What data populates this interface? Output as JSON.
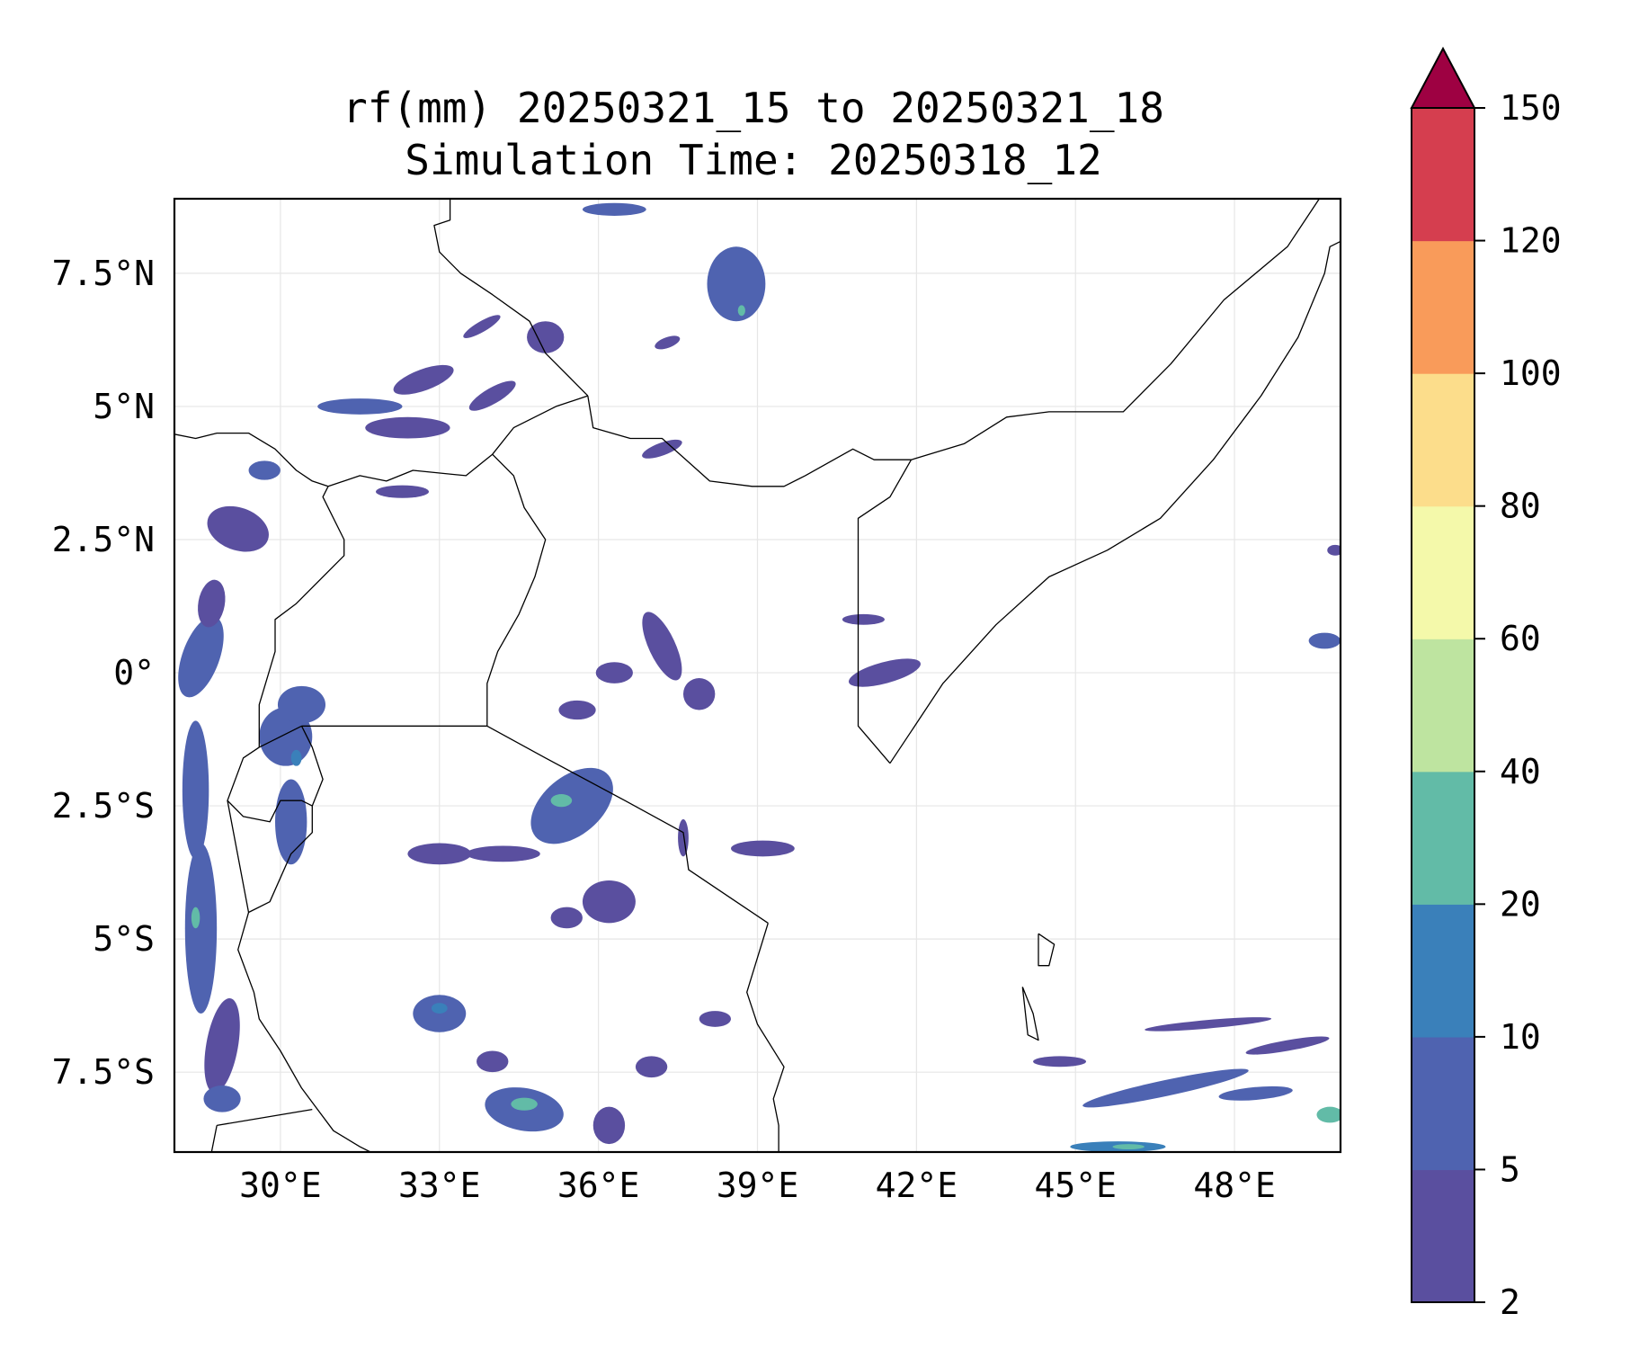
{
  "map": {
    "title_line1": "rf(mm) 20250321_15 to 20250321_18",
    "title_line2": "Simulation Time: 20250318_12",
    "extent": {
      "lon": [
        28.0,
        50.0
      ],
      "lat": [
        -9.0,
        8.9
      ]
    },
    "lon_ticks": [
      {
        "value": 30,
        "label": "30°E"
      },
      {
        "value": 33,
        "label": "33°E"
      },
      {
        "value": 36,
        "label": "36°E"
      },
      {
        "value": 39,
        "label": "39°E"
      },
      {
        "value": 42,
        "label": "42°E"
      },
      {
        "value": 45,
        "label": "45°E"
      },
      {
        "value": 48,
        "label": "48°E"
      }
    ],
    "lat_ticks": [
      {
        "value": 7.5,
        "label": "7.5°N"
      },
      {
        "value": 5,
        "label": "5°N"
      },
      {
        "value": 2.5,
        "label": "2.5°N"
      },
      {
        "value": 0,
        "label": "0°"
      },
      {
        "value": -2.5,
        "label": "2.5°S"
      },
      {
        "value": -5,
        "label": "5°S"
      },
      {
        "value": -7.5,
        "label": "7.5°S"
      }
    ],
    "gridlines": true
  },
  "colorbar": {
    "levels": [
      {
        "value": 2,
        "label": "2"
      },
      {
        "value": 5,
        "label": "5"
      },
      {
        "value": 10,
        "label": "10"
      },
      {
        "value": 20,
        "label": "20"
      },
      {
        "value": 40,
        "label": "40"
      },
      {
        "value": 60,
        "label": "60"
      },
      {
        "value": 80,
        "label": "80"
      },
      {
        "value": 100,
        "label": "100"
      },
      {
        "value": 120,
        "label": "120"
      },
      {
        "value": 150,
        "label": "150"
      }
    ],
    "colors": [
      "#5a4f9f",
      "#4f63b0",
      "#3a80ba",
      "#62bba7",
      "#bee4a0",
      "#f4f9aa",
      "#fcdd8b",
      "#f99b5a",
      "#d53e4f"
    ],
    "extend_max_color": "#9e0142",
    "placement": "right"
  },
  "borders": [
    [
      [
        27.9,
        4.5
      ],
      [
        28.4,
        4.4
      ],
      [
        28.8,
        4.5
      ],
      [
        29.4,
        4.5
      ],
      [
        29.9,
        4.2
      ],
      [
        30.3,
        3.8
      ],
      [
        30.6,
        3.6
      ],
      [
        30.9,
        3.5
      ],
      [
        31.5,
        3.7
      ],
      [
        32.0,
        3.6
      ],
      [
        32.5,
        3.8
      ],
      [
        33.5,
        3.7
      ],
      [
        34.0,
        4.1
      ],
      [
        34.4,
        4.6
      ],
      [
        35.2,
        5.0
      ],
      [
        35.8,
        5.2
      ]
    ],
    [
      [
        35.8,
        5.2
      ],
      [
        35.9,
        4.6
      ],
      [
        36.6,
        4.4
      ],
      [
        37.2,
        4.4
      ],
      [
        38.1,
        3.6
      ],
      [
        38.9,
        3.5
      ],
      [
        39.5,
        3.5
      ],
      [
        39.9,
        3.7
      ],
      [
        40.8,
        4.2
      ],
      [
        41.2,
        4.0
      ],
      [
        41.9,
        4.0
      ]
    ],
    [
      [
        41.9,
        4.0
      ],
      [
        41.5,
        3.3
      ],
      [
        40.9,
        2.9
      ],
      [
        40.9,
        1.5
      ],
      [
        40.9,
        0.0
      ],
      [
        40.9,
        -1.0
      ],
      [
        41.5,
        -1.7
      ]
    ],
    [
      [
        41.9,
        4.0
      ],
      [
        42.9,
        4.3
      ],
      [
        43.7,
        4.8
      ],
      [
        44.5,
        4.9
      ],
      [
        45.9,
        4.9
      ],
      [
        46.8,
        5.8
      ],
      [
        47.8,
        7.0
      ],
      [
        49.0,
        8.0
      ],
      [
        49.6,
        8.9
      ]
    ],
    [
      [
        41.5,
        -1.7
      ],
      [
        41.9,
        -1.1
      ],
      [
        42.5,
        -0.2
      ],
      [
        43.5,
        0.9
      ],
      [
        44.5,
        1.8
      ],
      [
        45.6,
        2.3
      ],
      [
        46.6,
        2.9
      ],
      [
        47.6,
        4.0
      ],
      [
        48.5,
        5.2
      ],
      [
        49.2,
        6.3
      ],
      [
        49.7,
        7.5
      ],
      [
        49.8,
        8.0
      ],
      [
        50.0,
        8.1
      ]
    ],
    [
      [
        33.9,
        -1.0
      ],
      [
        35.0,
        -1.6
      ],
      [
        36.5,
        -2.4
      ],
      [
        37.6,
        -3.0
      ],
      [
        37.7,
        -3.7
      ],
      [
        38.6,
        -4.3
      ],
      [
        39.2,
        -4.7
      ]
    ],
    [
      [
        39.2,
        -4.7
      ],
      [
        38.8,
        -6.0
      ],
      [
        39.0,
        -6.6
      ],
      [
        39.5,
        -7.4
      ],
      [
        39.3,
        -8.0
      ],
      [
        39.4,
        -8.5
      ],
      [
        39.4,
        -9.0
      ]
    ],
    [
      [
        30.4,
        -1.0
      ],
      [
        31.3,
        -1.0
      ],
      [
        32.5,
        -1.0
      ],
      [
        33.9,
        -1.0
      ]
    ],
    [
      [
        33.9,
        -1.0
      ],
      [
        33.9,
        -0.2
      ],
      [
        34.1,
        0.4
      ],
      [
        34.5,
        1.1
      ],
      [
        34.8,
        1.8
      ],
      [
        35.0,
        2.5
      ],
      [
        34.6,
        3.1
      ],
      [
        34.4,
        3.7
      ],
      [
        34.0,
        4.1
      ]
    ],
    [
      [
        30.4,
        -1.0
      ],
      [
        30.6,
        -1.4
      ],
      [
        30.8,
        -2.0
      ],
      [
        30.6,
        -2.5
      ],
      [
        30.6,
        -3.0
      ],
      [
        30.2,
        -3.4
      ],
      [
        29.8,
        -4.3
      ],
      [
        29.4,
        -4.5
      ]
    ],
    [
      [
        29.6,
        -1.4
      ],
      [
        30.4,
        -1.0
      ]
    ],
    [
      [
        29.0,
        -2.4
      ],
      [
        29.3,
        -2.7
      ],
      [
        29.8,
        -2.8
      ],
      [
        30.0,
        -2.4
      ],
      [
        30.4,
        -2.4
      ],
      [
        30.6,
        -2.5
      ]
    ],
    [
      [
        29.6,
        -1.4
      ],
      [
        29.3,
        -1.6
      ],
      [
        29.0,
        -2.4
      ],
      [
        29.4,
        -4.5
      ]
    ],
    [
      [
        29.6,
        -1.4
      ],
      [
        29.6,
        -0.6
      ],
      [
        29.9,
        0.4
      ],
      [
        29.9,
        1.0
      ],
      [
        30.3,
        1.3
      ],
      [
        31.2,
        2.2
      ],
      [
        31.2,
        2.5
      ],
      [
        30.8,
        3.3
      ],
      [
        30.9,
        3.5
      ]
    ],
    [
      [
        29.4,
        -4.5
      ],
      [
        29.2,
        -5.2
      ],
      [
        29.5,
        -6.0
      ],
      [
        29.6,
        -6.5
      ],
      [
        30.0,
        -7.1
      ],
      [
        30.4,
        -7.8
      ],
      [
        30.7,
        -8.2
      ],
      [
        31.0,
        -8.6
      ],
      [
        31.5,
        -8.9
      ],
      [
        31.7,
        -9.0
      ]
    ],
    [
      [
        28.8,
        -8.5
      ],
      [
        30.6,
        -8.2
      ]
    ],
    [
      [
        28.7,
        -9.0
      ],
      [
        28.8,
        -8.5
      ]
    ],
    [
      [
        35.8,
        5.2
      ],
      [
        35.5,
        5.5
      ],
      [
        35.0,
        6.0
      ],
      [
        34.7,
        6.6
      ],
      [
        34.0,
        7.1
      ],
      [
        33.4,
        7.5
      ],
      [
        33.0,
        7.9
      ],
      [
        32.9,
        8.4
      ],
      [
        33.2,
        8.5
      ],
      [
        33.2,
        8.9
      ]
    ],
    [
      [
        44.3,
        -4.9
      ],
      [
        44.6,
        -5.1
      ],
      [
        44.5,
        -5.5
      ],
      [
        44.3,
        -5.5
      ],
      [
        44.3,
        -4.9
      ]
    ],
    [
      [
        44.0,
        -5.9
      ],
      [
        44.2,
        -6.4
      ],
      [
        44.3,
        -6.9
      ],
      [
        44.1,
        -6.8
      ],
      [
        44.0,
        -5.9
      ]
    ]
  ],
  "rain_patches": [
    {
      "lon": 28.4,
      "lat": -2.2,
      "rx": 0.25,
      "ry": 1.3,
      "rot": 0,
      "level": 1
    },
    {
      "lon": 28.5,
      "lat": -4.8,
      "rx": 0.3,
      "ry": 1.6,
      "rot": 0,
      "level": 1
    },
    {
      "lon": 28.4,
      "lat": -4.6,
      "rx": 0.08,
      "ry": 0.2,
      "rot": 0,
      "level": 3
    },
    {
      "lon": 28.9,
      "lat": -7.0,
      "rx": 0.3,
      "ry": 0.9,
      "rot": 10,
      "level": 0
    },
    {
      "lon": 28.9,
      "lat": -8.0,
      "rx": 0.35,
      "ry": 0.25,
      "rot": 0,
      "level": 1
    },
    {
      "lon": 28.5,
      "lat": 0.3,
      "rx": 0.35,
      "ry": 0.8,
      "rot": 20,
      "level": 1
    },
    {
      "lon": 28.7,
      "lat": 1.3,
      "rx": 0.25,
      "ry": 0.45,
      "rot": 10,
      "level": 0
    },
    {
      "lon": 29.2,
      "lat": 2.7,
      "rx": 0.6,
      "ry": 0.4,
      "rot": 20,
      "level": 0
    },
    {
      "lon": 29.7,
      "lat": 3.8,
      "rx": 0.3,
      "ry": 0.18,
      "rot": 0,
      "level": 1
    },
    {
      "lon": 30.1,
      "lat": -1.2,
      "rx": 0.5,
      "ry": 0.55,
      "rot": 0,
      "level": 1
    },
    {
      "lon": 30.4,
      "lat": -0.6,
      "rx": 0.45,
      "ry": 0.35,
      "rot": 0,
      "level": 1
    },
    {
      "lon": 30.2,
      "lat": -2.8,
      "rx": 0.3,
      "ry": 0.8,
      "rot": 0,
      "level": 1
    },
    {
      "lon": 30.3,
      "lat": -1.6,
      "rx": 0.1,
      "ry": 0.15,
      "rot": 0,
      "level": 2
    },
    {
      "lon": 31.5,
      "lat": 5.0,
      "rx": 0.8,
      "ry": 0.15,
      "rot": 0,
      "level": 1
    },
    {
      "lon": 32.4,
      "lat": 4.6,
      "rx": 0.8,
      "ry": 0.2,
      "rot": 0,
      "level": 0
    },
    {
      "lon": 32.7,
      "lat": 5.5,
      "rx": 0.6,
      "ry": 0.2,
      "rot": -20,
      "level": 0
    },
    {
      "lon": 32.3,
      "lat": 3.4,
      "rx": 0.5,
      "ry": 0.12,
      "rot": 0,
      "level": 0
    },
    {
      "lon": 34.0,
      "lat": 5.2,
      "rx": 0.5,
      "ry": 0.15,
      "rot": -30,
      "level": 0
    },
    {
      "lon": 35.0,
      "lat": 6.3,
      "rx": 0.35,
      "ry": 0.3,
      "rot": 0,
      "level": 0
    },
    {
      "lon": 33.8,
      "lat": 6.5,
      "rx": 0.4,
      "ry": 0.1,
      "rot": -30,
      "level": 0
    },
    {
      "lon": 36.3,
      "lat": 8.7,
      "rx": 0.6,
      "ry": 0.12,
      "rot": 0,
      "level": 1
    },
    {
      "lon": 38.6,
      "lat": 7.3,
      "rx": 0.55,
      "ry": 0.7,
      "rot": 0,
      "level": 1
    },
    {
      "lon": 38.7,
      "lat": 6.8,
      "rx": 0.07,
      "ry": 0.1,
      "rot": 0,
      "level": 3
    },
    {
      "lon": 37.3,
      "lat": 6.2,
      "rx": 0.25,
      "ry": 0.1,
      "rot": -20,
      "level": 0
    },
    {
      "lon": 37.2,
      "lat": 4.2,
      "rx": 0.4,
      "ry": 0.12,
      "rot": -20,
      "level": 0
    },
    {
      "lon": 35.5,
      "lat": -2.5,
      "rx": 0.9,
      "ry": 0.55,
      "rot": -40,
      "level": 1
    },
    {
      "lon": 35.3,
      "lat": -2.4,
      "rx": 0.2,
      "ry": 0.12,
      "rot": 0,
      "level": 3
    },
    {
      "lon": 37.2,
      "lat": 0.5,
      "rx": 0.25,
      "ry": 0.7,
      "rot": -25,
      "level": 0
    },
    {
      "lon": 36.3,
      "lat": 0.0,
      "rx": 0.35,
      "ry": 0.2,
      "rot": 0,
      "level": 0
    },
    {
      "lon": 37.9,
      "lat": -0.4,
      "rx": 0.3,
      "ry": 0.3,
      "rot": 0,
      "level": 0
    },
    {
      "lon": 35.6,
      "lat": -0.7,
      "rx": 0.35,
      "ry": 0.18,
      "rot": 0,
      "level": 0
    },
    {
      "lon": 37.6,
      "lat": -3.1,
      "rx": 0.1,
      "ry": 0.35,
      "rot": 0,
      "level": 0
    },
    {
      "lon": 39.1,
      "lat": -3.3,
      "rx": 0.6,
      "ry": 0.15,
      "rot": 0,
      "level": 0
    },
    {
      "lon": 41.4,
      "lat": 0.0,
      "rx": 0.7,
      "ry": 0.2,
      "rot": -15,
      "level": 0
    },
    {
      "lon": 41.0,
      "lat": 1.0,
      "rx": 0.4,
      "ry": 0.1,
      "rot": 0,
      "level": 0
    },
    {
      "lon": 34.2,
      "lat": -3.4,
      "rx": 0.7,
      "ry": 0.15,
      "rot": 0,
      "level": 0
    },
    {
      "lon": 33.0,
      "lat": -3.4,
      "rx": 0.6,
      "ry": 0.2,
      "rot": 0,
      "level": 0
    },
    {
      "lon": 36.2,
      "lat": -4.3,
      "rx": 0.5,
      "ry": 0.4,
      "rot": 0,
      "level": 0
    },
    {
      "lon": 35.4,
      "lat": -4.6,
      "rx": 0.3,
      "ry": 0.2,
      "rot": 0,
      "level": 0
    },
    {
      "lon": 33.0,
      "lat": -6.4,
      "rx": 0.5,
      "ry": 0.35,
      "rot": 0,
      "level": 1
    },
    {
      "lon": 33.0,
      "lat": -6.3,
      "rx": 0.15,
      "ry": 0.1,
      "rot": 0,
      "level": 2
    },
    {
      "lon": 34.6,
      "lat": -8.2,
      "rx": 0.75,
      "ry": 0.4,
      "rot": 10,
      "level": 1
    },
    {
      "lon": 34.6,
      "lat": -8.1,
      "rx": 0.25,
      "ry": 0.12,
      "rot": 0,
      "level": 3
    },
    {
      "lon": 36.2,
      "lat": -8.5,
      "rx": 0.3,
      "ry": 0.35,
      "rot": 0,
      "level": 0
    },
    {
      "lon": 34.0,
      "lat": -7.3,
      "rx": 0.3,
      "ry": 0.2,
      "rot": 0,
      "level": 0
    },
    {
      "lon": 38.2,
      "lat": -6.5,
      "rx": 0.3,
      "ry": 0.15,
      "rot": 0,
      "level": 0
    },
    {
      "lon": 37.0,
      "lat": -7.4,
      "rx": 0.3,
      "ry": 0.2,
      "rot": 0,
      "level": 0
    },
    {
      "lon": 46.7,
      "lat": -7.8,
      "rx": 1.6,
      "ry": 0.15,
      "rot": -12,
      "level": 1
    },
    {
      "lon": 48.4,
      "lat": -7.9,
      "rx": 0.7,
      "ry": 0.12,
      "rot": -5,
      "level": 1
    },
    {
      "lon": 49.8,
      "lat": -8.3,
      "rx": 0.25,
      "ry": 0.15,
      "rot": 0,
      "level": 3
    },
    {
      "lon": 45.8,
      "lat": -8.9,
      "rx": 0.9,
      "ry": 0.1,
      "rot": 0,
      "level": 2
    },
    {
      "lon": 46.0,
      "lat": -8.9,
      "rx": 0.3,
      "ry": 0.05,
      "rot": 0,
      "level": 3
    },
    {
      "lon": 49.0,
      "lat": -7.0,
      "rx": 0.8,
      "ry": 0.1,
      "rot": -10,
      "level": 0
    },
    {
      "lon": 47.5,
      "lat": -6.6,
      "rx": 1.2,
      "ry": 0.08,
      "rot": -5,
      "level": 0
    },
    {
      "lon": 44.7,
      "lat": -7.3,
      "rx": 0.5,
      "ry": 0.1,
      "rot": 0,
      "level": 0
    },
    {
      "lon": 49.7,
      "lat": 0.6,
      "rx": 0.3,
      "ry": 0.15,
      "rot": 0,
      "level": 1
    },
    {
      "lon": 49.9,
      "lat": 2.3,
      "rx": 0.15,
      "ry": 0.1,
      "rot": 0,
      "level": 0
    }
  ]
}
